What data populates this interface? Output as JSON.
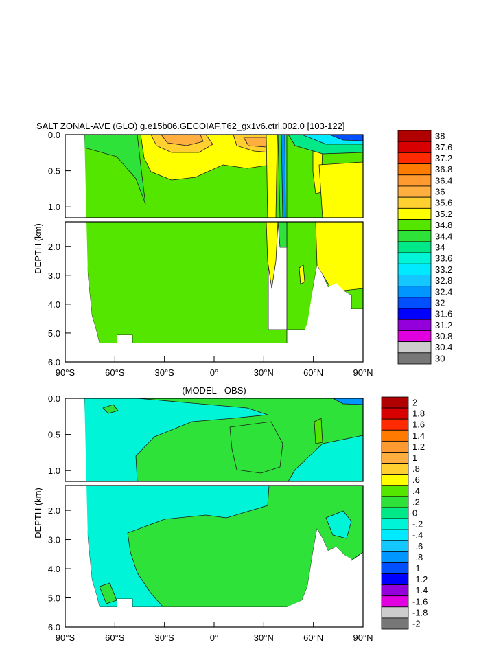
{
  "chart_data": [
    {
      "type": "heatmap",
      "title": "SALT ZONAL-AVE (GLO) g.e15b06.GECOIAF.T62_gx1v6.ctrl.002.0 [103-122]",
      "ylabel": "DEPTH (km)",
      "x_ticks": [
        "90°S",
        "60°S",
        "30°S",
        "0°",
        "30°N",
        "60°N",
        "90°N"
      ],
      "xlim": [
        -90,
        90
      ],
      "y_ticks_upper": [
        "0.0",
        "0.5",
        "1.0"
      ],
      "y_ticks_lower": [
        "2.0",
        "3.0",
        "4.0",
        "5.0",
        "6.0"
      ],
      "ylim_upper_km": [
        0,
        1.15
      ],
      "ylim_lower_km": [
        1.15,
        6.0
      ],
      "colorbar_labels": [
        "38",
        "37.6",
        "37.2",
        "36.8",
        "36.4",
        "36",
        "35.6",
        "35.2",
        "34.8",
        "34.4",
        "34",
        "33.6",
        "33.2",
        "32.8",
        "32.4",
        "32",
        "31.6",
        "31.2",
        "30.8",
        "30.4",
        "30"
      ],
      "colorbar_colors": [
        "#b00000",
        "#d80000",
        "#ff2a00",
        "#ff7a00",
        "#ff9a30",
        "#ffae40",
        "#ffd030",
        "#ffff00",
        "#55e600",
        "#2ee23a",
        "#00e887",
        "#00f5d8",
        "#00eaff",
        "#14c8ff",
        "#0096ff",
        "#0050ff",
        "#0000ff",
        "#9300db",
        "#e000e0",
        "#cccccc",
        "#777777"
      ]
    },
    {
      "type": "heatmap",
      "title": "(MODEL - OBS)",
      "ylabel": "DEPTH (km)",
      "x_ticks": [
        "90°S",
        "60°S",
        "30°S",
        "0°",
        "30°N",
        "60°N",
        "90°N"
      ],
      "xlim": [
        -90,
        90
      ],
      "y_ticks_upper": [
        "0.0",
        "0.5",
        "1.0"
      ],
      "y_ticks_lower": [
        "2.0",
        "3.0",
        "4.0",
        "5.0",
        "6.0"
      ],
      "ylim_upper_km": [
        0,
        1.15
      ],
      "ylim_lower_km": [
        1.15,
        6.0
      ],
      "colorbar_labels": [
        "2",
        "1.8",
        "1.6",
        "1.4",
        "1.2",
        "1",
        ".8",
        ".6",
        ".4",
        ".2",
        "0",
        "-.2",
        "-.4",
        "-.6",
        "-.8",
        "-1",
        "-1.2",
        "-1.4",
        "-1.6",
        "-1.8",
        "-2"
      ],
      "colorbar_colors": [
        "#b00000",
        "#d80000",
        "#ff2a00",
        "#ff7a00",
        "#ff9a30",
        "#ffae40",
        "#ffd030",
        "#ffff00",
        "#55e600",
        "#2ee23a",
        "#00e887",
        "#00f5d8",
        "#00eaff",
        "#14c8ff",
        "#0096ff",
        "#0050ff",
        "#0000ff",
        "#9300db",
        "#e000e0",
        "#cccccc",
        "#777777"
      ]
    }
  ]
}
